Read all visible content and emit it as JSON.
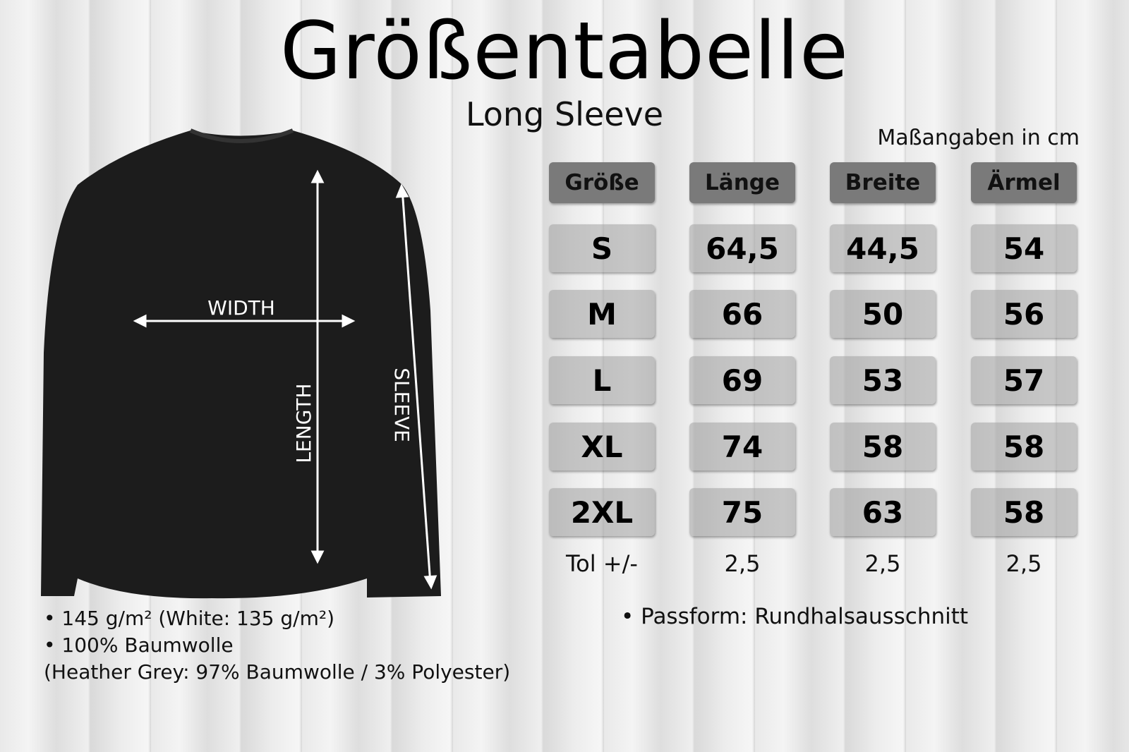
{
  "header": {
    "title": "Größentabelle",
    "subtitle": "Long Sleeve",
    "unit_note": "Maßangaben in cm"
  },
  "diagram": {
    "labels": {
      "width": "WIDTH",
      "length": "LENGTH",
      "sleeve": "SLEEVE"
    }
  },
  "table": {
    "columns": [
      "Größe",
      "Länge",
      "Breite",
      "Ärmel"
    ],
    "rows": [
      [
        "S",
        "64,5",
        "44,5",
        "54"
      ],
      [
        "M",
        "66",
        "50",
        "56"
      ],
      [
        "L",
        "69",
        "53",
        "57"
      ],
      [
        "XL",
        "74",
        "58",
        "58"
      ],
      [
        "2XL",
        "75",
        "63",
        "58"
      ]
    ],
    "tolerance": [
      "Tol +/-",
      "2,5",
      "2,5",
      "2,5"
    ]
  },
  "notes": {
    "left": [
      "• 145 g/m² (White: 135 g/m²)",
      "• 100% Baumwolle",
      "(Heather Grey: 97% Baumwolle / 3% Polyester)"
    ],
    "right": "•  Passform: Rundhalsausschnitt"
  }
}
